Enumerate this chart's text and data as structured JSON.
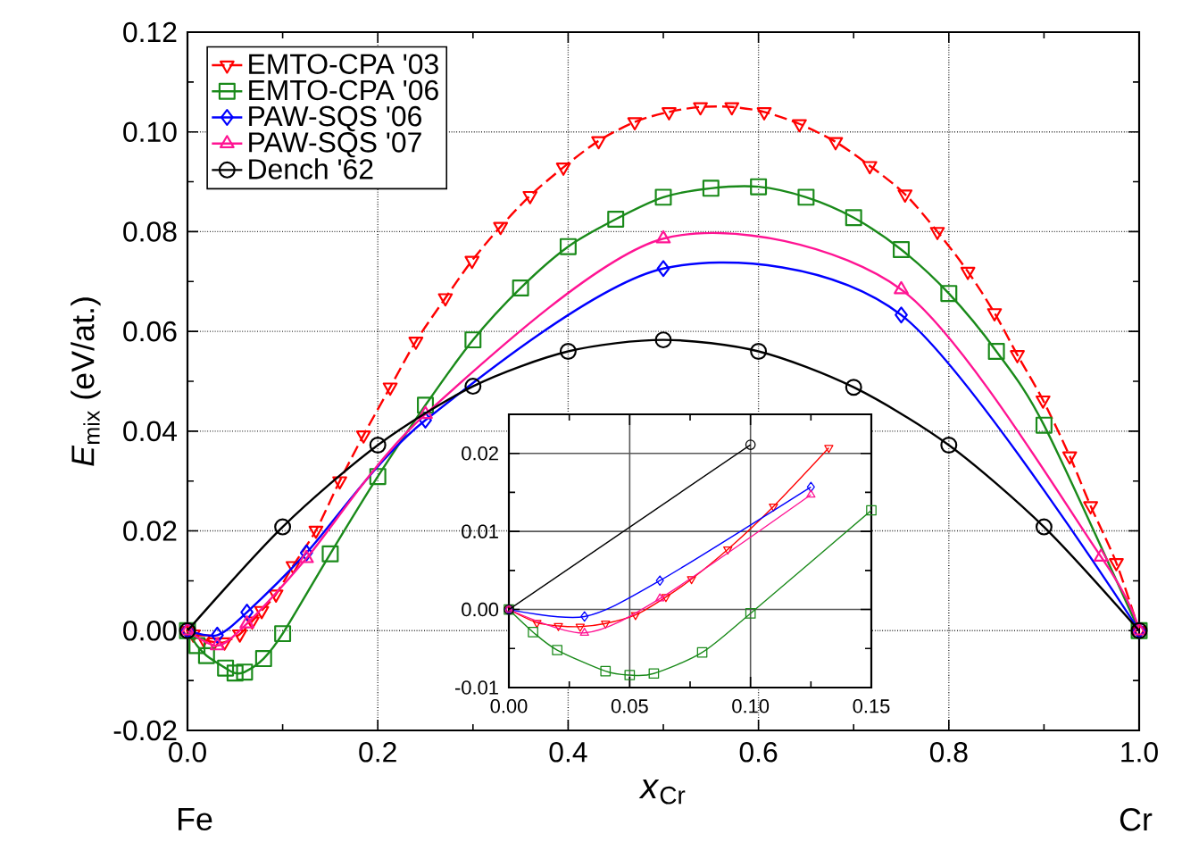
{
  "chart_data": [
    {
      "type": "line",
      "xlabel": "*x*$_{Cr}$",
      "ylabel": "*E*$_{mix}$ (eV/at.)",
      "annotations": [
        "Fe",
        "Cr"
      ],
      "xlim": [
        0,
        1
      ],
      "ylim": [
        -0.02,
        0.12
      ],
      "xticks": [
        {
          "value": 0,
          "label": "0.0"
        },
        {
          "value": 0.2,
          "label": "0.2"
        },
        {
          "value": 0.4,
          "label": "0.4"
        },
        {
          "value": 0.6,
          "label": "0.6"
        },
        {
          "value": 0.8,
          "label": "0.8"
        },
        {
          "value": 1,
          "label": "1.0"
        }
      ],
      "yticks": [
        {
          "value": -0.02,
          "label": "-0.02"
        },
        {
          "value": 0,
          "label": "0.00"
        },
        {
          "value": 0.02,
          "label": "0.02"
        },
        {
          "value": 0.04,
          "label": "0.04"
        },
        {
          "value": 0.06,
          "label": "0.06"
        },
        {
          "value": 0.08,
          "label": "0.08"
        },
        {
          "value": 0.1,
          "label": "0.10"
        },
        {
          "value": 0.12,
          "label": "0.12"
        }
      ],
      "grid": true,
      "legend": "top left",
      "series": [
        {
          "name": "EMTO-CPA '03",
          "color": "#ff0000",
          "marker": "triangle-down",
          "line_style": "dashed",
          "x": [
            0,
            0.006,
            0.017,
            0.028,
            0.039,
            0.055,
            0.068,
            0.078,
            0.093,
            0.111,
            0.135,
            0.16,
            0.185,
            0.213,
            0.24,
            0.271,
            0.299,
            0.329,
            0.36,
            0.395,
            0.432,
            0.47,
            0.506,
            0.539,
            0.572,
            0.606,
            0.643,
            0.681,
            0.717,
            0.754,
            0.788,
            0.82,
            0.848,
            0.872,
            0.899,
            0.927,
            0.949,
            0.976,
            1.0
          ],
          "values": [
            0,
            -0.0007,
            -0.0017,
            -0.0023,
            -0.0023,
            -0.0007,
            0.0019,
            0.004,
            0.0073,
            0.013,
            0.0201,
            0.03,
            0.0392,
            0.0488,
            0.058,
            0.0667,
            0.0742,
            0.081,
            0.0872,
            0.0929,
            0.0982,
            0.102,
            0.104,
            0.105,
            0.105,
            0.104,
            0.1016,
            0.098,
            0.0932,
            0.0875,
            0.08,
            0.072,
            0.0637,
            0.0553,
            0.0462,
            0.035,
            0.025,
            0.0136,
            0
          ]
        },
        {
          "name": "EMTO-CPA '06",
          "color": "#1a8a1a",
          "marker": "square",
          "line_style": "solid",
          "x": [
            0,
            0.01,
            0.02,
            0.04,
            0.05,
            0.06,
            0.08,
            0.1,
            0.15,
            0.2,
            0.25,
            0.3,
            0.35,
            0.4,
            0.45,
            0.5,
            0.55,
            0.6,
            0.65,
            0.7,
            0.75,
            0.8,
            0.85,
            0.9,
            1.0
          ],
          "values": [
            0,
            -0.003,
            -0.005,
            -0.0075,
            -0.0085,
            -0.0083,
            -0.0056,
            -0.0006,
            0.0154,
            0.0309,
            0.0452,
            0.0583,
            0.0687,
            0.077,
            0.0825,
            0.0869,
            0.0887,
            0.089,
            0.0869,
            0.0828,
            0.0764,
            0.0676,
            0.056,
            0.0412,
            0
          ]
        },
        {
          "name": "PAW-SQS '06",
          "color": "#0000ff",
          "marker": "diamond",
          "line_style": "solid",
          "x": [
            0,
            0.0313,
            0.0625,
            0.125,
            0.25,
            0.5,
            0.75,
            1
          ],
          "values": [
            0,
            -0.0009,
            0.0037,
            0.0156,
            0.0422,
            0.0726,
            0.0633,
            0
          ]
        },
        {
          "name": "PAW-SQS '07",
          "color": "#ff1493",
          "marker": "triangle",
          "line_style": "solid",
          "x": [
            0,
            0.0313,
            0.0625,
            0.125,
            0.25,
            0.5,
            0.75,
            0.96,
            1
          ],
          "values": [
            0,
            -0.003,
            0.0014,
            0.0145,
            0.0434,
            0.0786,
            0.0684,
            0.0148,
            0
          ]
        },
        {
          "name": "Dench '62",
          "color": "#000000",
          "marker": "circle",
          "line_style": "solid",
          "x": [
            0,
            0.1,
            0.2,
            0.3,
            0.4,
            0.5,
            0.6,
            0.7,
            0.8,
            0.9,
            1.0
          ],
          "values": [
            0,
            0.0208,
            0.0372,
            0.049,
            0.056,
            0.0583,
            0.056,
            0.0488,
            0.0372,
            0.0208,
            0
          ]
        }
      ]
    },
    {
      "type": "line",
      "xlim": [
        0,
        0.15
      ],
      "ylim": [
        -0.01,
        0.025
      ],
      "xticks": [
        {
          "value": 0,
          "label": "0.00"
        },
        {
          "value": 0.05,
          "label": "0.05"
        },
        {
          "value": 0.1,
          "label": "0.10"
        },
        {
          "value": 0.15,
          "label": "0.15"
        }
      ],
      "yticks": [
        {
          "value": -0.01,
          "label": "-0.01"
        },
        {
          "value": 0,
          "label": "0.00"
        },
        {
          "value": 0.01,
          "label": "0.01"
        },
        {
          "value": 0.02,
          "label": "0.02"
        }
      ],
      "grid": true,
      "series": [
        {
          "color": "#ff0000",
          "marker": "triangle-down",
          "line_style": "solid",
          "x": [
            0,
            0.0116,
            0.0205,
            0.0295,
            0.04,
            0.0524,
            0.065,
            0.0756,
            0.0906,
            0.1095,
            0.1324
          ],
          "values": [
            0,
            -0.0017,
            -0.0021,
            -0.0022,
            -0.0018,
            -0.0007,
            0.0016,
            0.0039,
            0.0077,
            0.0132,
            0.0207
          ]
        },
        {
          "color": "#1a8a1a",
          "marker": "square",
          "line_style": "solid",
          "x": [
            0,
            0.01,
            0.02,
            0.04,
            0.05,
            0.06,
            0.08,
            0.1,
            0.15
          ],
          "values": [
            0,
            -0.0029,
            -0.0052,
            -0.0079,
            -0.0084,
            -0.0082,
            -0.0055,
            -0.0005,
            0.0127
          ]
        },
        {
          "color": "#0000ff",
          "marker": "diamond",
          "line_style": "solid",
          "x": [
            0,
            0.0313,
            0.0625,
            0.125
          ],
          "values": [
            0,
            -0.0009,
            0.0037,
            0.0157
          ]
        },
        {
          "color": "#ff1493",
          "marker": "triangle",
          "line_style": "solid",
          "x": [
            0,
            0.0313,
            0.0625,
            0.125
          ],
          "values": [
            0,
            -0.003,
            0.0014,
            0.0147
          ]
        },
        {
          "color": "#000000",
          "marker": "circle",
          "line_style": "solid",
          "x": [
            0,
            0.1
          ],
          "values": [
            0,
            0.0211
          ]
        }
      ]
    }
  ]
}
